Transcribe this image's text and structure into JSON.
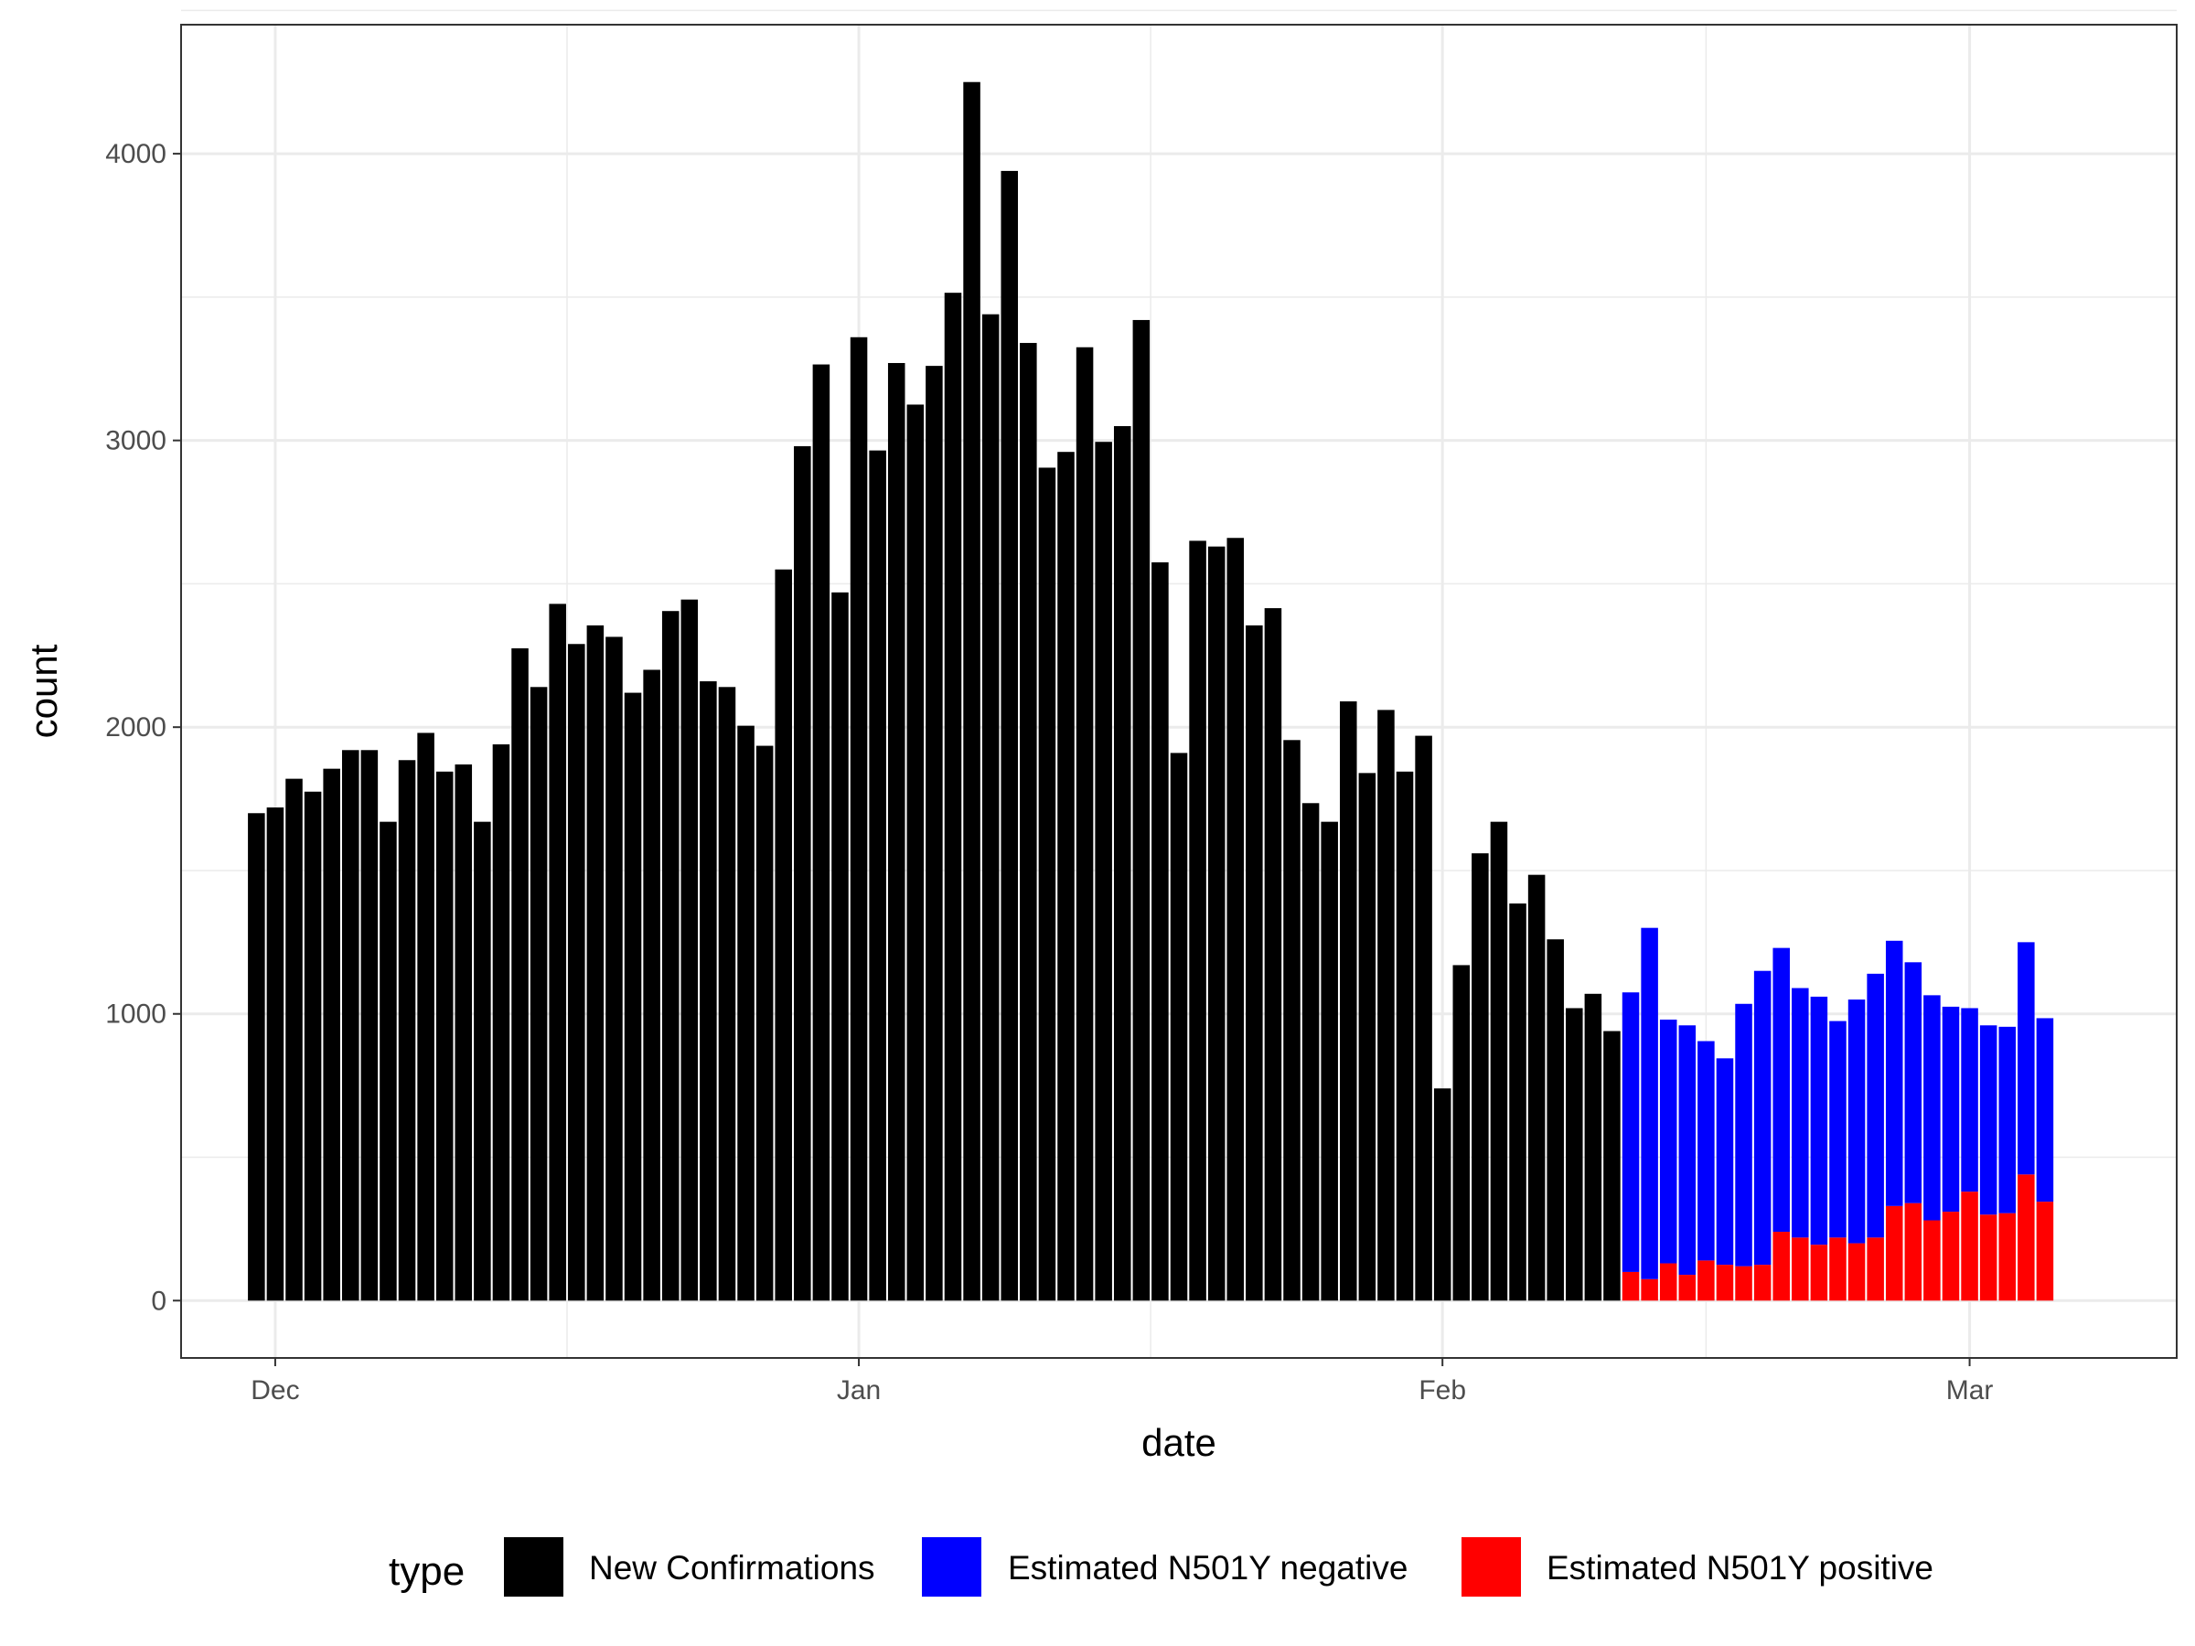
{
  "chart_data": {
    "type": "bar",
    "stacked": true,
    "xlabel": "date",
    "ylabel": "count",
    "ylim": [
      -200,
      4450
    ],
    "xlim": [
      "2020-11-26",
      "2021-03-12"
    ],
    "y_ticks": [
      0,
      1000,
      2000,
      3000,
      4000
    ],
    "x_ticks": [
      {
        "date": "2020-12-01",
        "label": "Dec"
      },
      {
        "date": "2021-01-01",
        "label": "Jan"
      },
      {
        "date": "2021-02-01",
        "label": "Feb"
      },
      {
        "date": "2021-03-01",
        "label": "Mar"
      }
    ],
    "grid": true,
    "legend": {
      "title": "type",
      "position": "bottom"
    },
    "series": [
      {
        "name": "New Confirmations",
        "color": "#000000",
        "start_date": "2020-11-30",
        "values": [
          1700,
          1720,
          1820,
          1775,
          1855,
          1920,
          1920,
          1670,
          1885,
          1980,
          1845,
          1870,
          1670,
          1940,
          2275,
          2140,
          2430,
          2290,
          2355,
          2315,
          2120,
          2200,
          2405,
          2445,
          2160,
          2140,
          2005,
          1935,
          2550,
          2980,
          3265,
          2470,
          3360,
          2965,
          3270,
          3125,
          3260,
          3515,
          4250,
          3440,
          3940,
          3340,
          2905,
          2960,
          3325,
          2995,
          3050,
          3420,
          2575,
          1910,
          2650,
          2630,
          2660,
          2355,
          2415,
          1955,
          1735,
          1670,
          2090,
          1840,
          2060,
          1845,
          1970,
          740,
          1170,
          1560,
          1670,
          1385,
          1485,
          1260,
          1020,
          1070,
          940
        ]
      },
      {
        "name": "Estimated N501Y positive",
        "color": "#ff0000",
        "start_date": "2021-02-11",
        "values": [
          100,
          75,
          130,
          90,
          140,
          125,
          120,
          125,
          240,
          220,
          195,
          220,
          200,
          220,
          330,
          340,
          280,
          310,
          380,
          300,
          305,
          440,
          345
        ]
      },
      {
        "name": "Estimated N501Y negative",
        "color": "#0000ff",
        "start_date": "2021-02-11",
        "values": [
          975,
          1225,
          850,
          870,
          765,
          720,
          915,
          1025,
          990,
          870,
          865,
          755,
          850,
          920,
          925,
          840,
          785,
          715,
          640,
          660,
          650,
          810,
          640
        ]
      }
    ]
  }
}
